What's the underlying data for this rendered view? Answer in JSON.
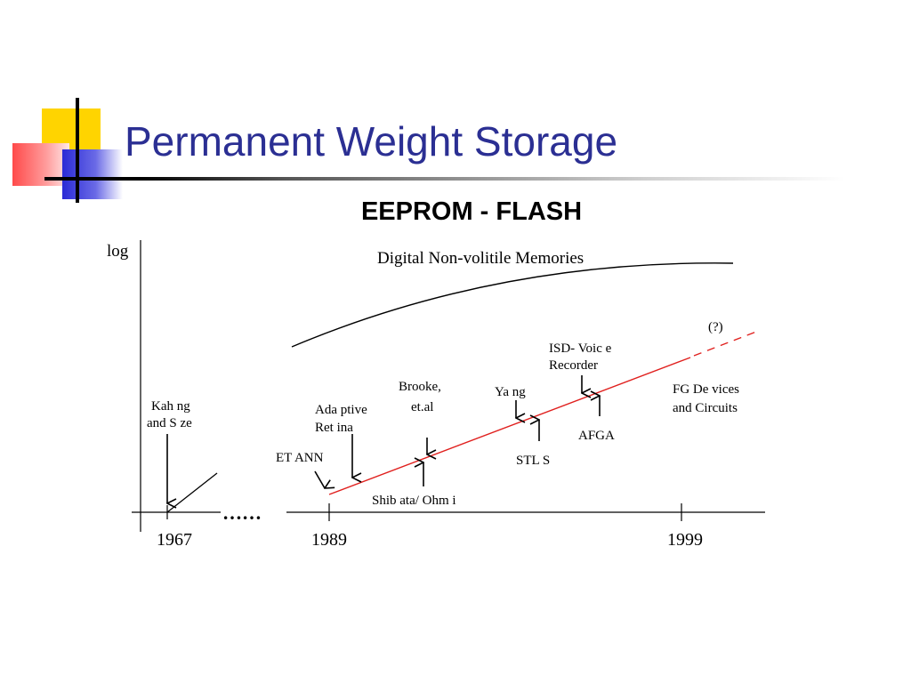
{
  "slide": {
    "title": "Permanent Weight Storage",
    "subtitle": "EEPROM - FLASH"
  },
  "diagram": {
    "y_label": "log",
    "curve_label": "Digital Non-volitile Memories",
    "ellipsis": "……",
    "question_mark": "(?)",
    "years": {
      "y1967": "1967",
      "y1989": "1989",
      "y1999": "1999"
    },
    "events": {
      "kahng_l1": "Kah ng",
      "kahng_l2": "and  S ze",
      "etann": "ET ANN",
      "adaptive_l1": "Ada ptive",
      "adaptive_l2": "Ret ina",
      "shibata": "Shib ata/ Ohm i",
      "brooke_l1": "Brooke,",
      "brooke_l2": "et.al",
      "yang": "Ya ng",
      "stls": "STL S",
      "isd_l1": "ISD- Voic e",
      "isd_l2": "Recorder",
      "afga": "AFGA",
      "fg_l1": "FG De vices",
      "fg_l2": "and Circuits"
    },
    "colors": {
      "trend": "#e0201e",
      "axis": "#000000"
    }
  }
}
